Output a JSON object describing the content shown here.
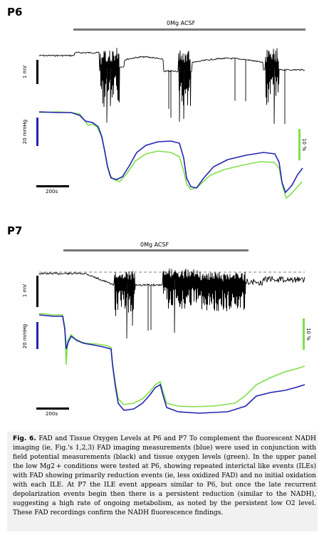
{
  "panels": [
    {
      "label": "P6",
      "condition": "0Mg ACSF",
      "voltage_scale": "1 mV",
      "oxygen_scale": "20 mmHg",
      "fad_scale": "10 %",
      "time_scale": "200s"
    },
    {
      "label": "P7",
      "condition": "0Mg ACSF",
      "voltage_scale": "1 mV",
      "oxygen_scale": "20 mmHg",
      "fad_scale": "10 %",
      "time_scale": "200s"
    }
  ],
  "colors": {
    "fad": "#2323b4",
    "oxygen": "#7ee04a",
    "voltage": "#000000",
    "condition_bar": "#777777"
  },
  "caption": {
    "figure_label": "Fig. 6.",
    "text": "FAD and Tissue Oxygen Levels at P6 and P7 To complement the fluorescent NADH imaging (ie, Fig.'s 1,2,3) FAD imaging measurements (blue) were used in conjunction with field potential measurements (black) and tissue oxygen levels (green). In the upper panel the low Mg2 + conditions were tested at P6, showing repeated interictal like events (ILEs) with FAD showing primarily reduction events (ie, less oxidized FAD) and no initial oxidation with each ILE. At P7 the ILE event appears similar to P6, but once the late recurrent depolarization events begin then there is a persistent reduction (similar to the NADH), suggesting a high rate of ongoing metabolism, as noted by the persistent low O2 level. These FAD recordings confirm the NADH fluorescence findings."
  }
}
